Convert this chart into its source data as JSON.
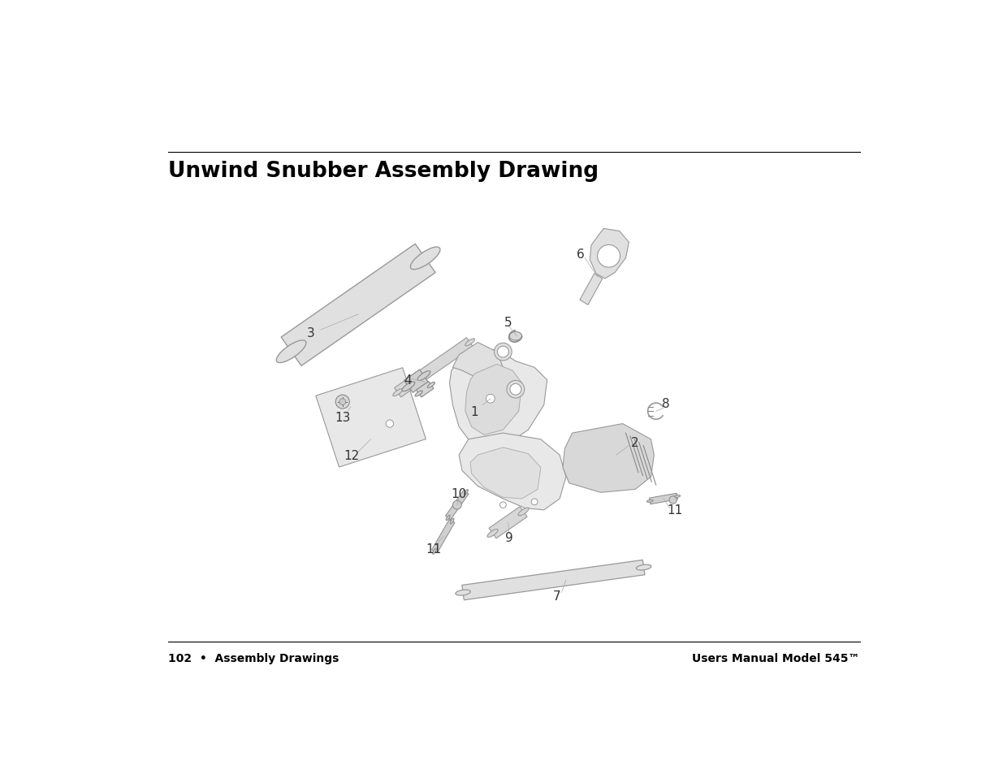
{
  "title": "Unwind Snubber Assembly Drawing",
  "footer_left": "102  •  Assembly Drawings",
  "footer_right": "Users Manual Model 545™",
  "bg_color": "#ffffff",
  "title_fontsize": 19,
  "footer_fontsize": 10,
  "fill_light": "#e8e8e8",
  "fill_mid": "#d8d8d8",
  "fill_dark": "#c8c8c8",
  "ec": "#888888",
  "lc": "#aaaaaa"
}
